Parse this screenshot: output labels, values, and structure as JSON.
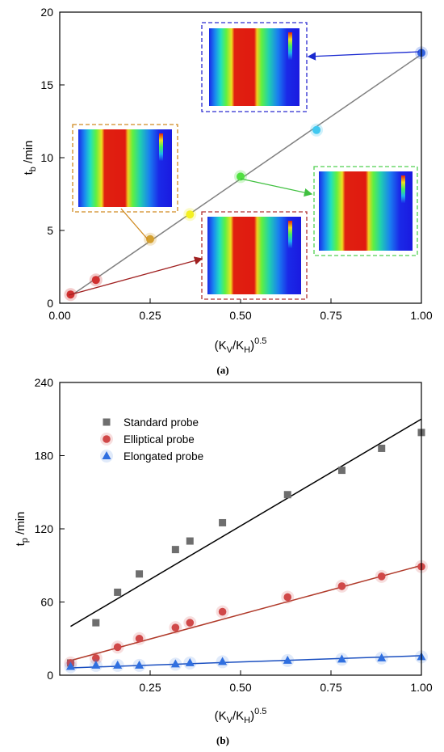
{
  "chart_data": [
    {
      "panel": "(a)",
      "type": "scatter",
      "ylabel": {
        "main": "t",
        "sub": "b",
        "unit": " /min"
      },
      "xlabel": {
        "open": "(K",
        "sub1": "V",
        "mid": "/K",
        "sub2": "H",
        "close": ")",
        "sup": "0.5"
      },
      "xlim": [
        0,
        1.0
      ],
      "ylim": [
        0,
        20
      ],
      "xticks": [
        "0.00",
        "0.25",
        "0.50",
        "0.75",
        "1.00"
      ],
      "yticks": [
        "0",
        "5",
        "10",
        "15",
        "20"
      ],
      "points": [
        {
          "x": 0.03,
          "y": 0.6,
          "color": "#d03030"
        },
        {
          "x": 0.1,
          "y": 1.6,
          "color": "#d03030"
        },
        {
          "x": 0.25,
          "y": 4.4,
          "color": "#d4a030"
        },
        {
          "x": 0.36,
          "y": 6.1,
          "color": "#f4f020"
        },
        {
          "x": 0.5,
          "y": 8.7,
          "color": "#50e040"
        },
        {
          "x": 0.71,
          "y": 11.9,
          "color": "#40c8f0"
        },
        {
          "x": 1.0,
          "y": 17.2,
          "color": "#3060e0"
        }
      ],
      "fit_line": {
        "x": [
          0.03,
          1.0
        ],
        "y": [
          0.5,
          17.1
        ],
        "color": "#808080"
      },
      "grid": false,
      "insets": [
        {
          "name": "inset-blue",
          "border_color": "#2a2ad0",
          "arrow_color": "#1a2ad0",
          "points_to": {
            "x": 1.0,
            "y": 17.2
          }
        },
        {
          "name": "inset-orange",
          "border_color": "#d08a20",
          "arrow_color": "#d08a20",
          "points_to": {
            "x": 0.25,
            "y": 4.4
          }
        },
        {
          "name": "inset-green",
          "border_color": "#50d050",
          "arrow_color": "#40c040",
          "points_to": {
            "x": 0.5,
            "y": 8.7
          }
        },
        {
          "name": "inset-red",
          "border_color": "#b03030",
          "arrow_color": "#a02020",
          "points_to": {
            "x": 0.03,
            "y": 0.6
          }
        }
      ]
    },
    {
      "panel": "(b)",
      "type": "scatter",
      "ylabel": {
        "main": "t",
        "sub": "p",
        "unit": " /min"
      },
      "xlabel": {
        "open": "(K",
        "sub1": "V",
        "mid": "/K",
        "sub2": "H",
        "close": ")",
        "sup": "0.5"
      },
      "xlim": [
        0,
        1.0
      ],
      "ylim": [
        0,
        240
      ],
      "xticks": [
        "0.25",
        "0.50",
        "0.75",
        "1.00"
      ],
      "yticks": [
        "0",
        "60",
        "120",
        "180",
        "240"
      ],
      "grid": false,
      "legend_position": "top-left",
      "x": [
        0.03,
        0.1,
        0.16,
        0.22,
        0.32,
        0.36,
        0.45,
        0.63,
        0.78,
        0.89,
        1.0
      ],
      "series": [
        {
          "name": "Standard probe",
          "marker": "square",
          "color": "#6e6e6e",
          "values": [
            10,
            43,
            68,
            83,
            103,
            110,
            125,
            148,
            168,
            186,
            199
          ],
          "fit_line": {
            "x": [
              0.03,
              1.0
            ],
            "y": [
              40,
              210
            ],
            "color": "#000000"
          }
        },
        {
          "name": "Elliptical probe",
          "marker": "circle",
          "color": "#d04848",
          "values": [
            10,
            14,
            23,
            30,
            39,
            43,
            52,
            64,
            73,
            81,
            89
          ],
          "fit_line": {
            "x": [
              0.03,
              1.0
            ],
            "y": [
              12,
              90
            ],
            "color": "#b03a2a"
          }
        },
        {
          "name": "Elongated probe",
          "marker": "triangle",
          "color": "#2f6fe0",
          "values": [
            7,
            8,
            8,
            8,
            9,
            10,
            11,
            12,
            13,
            14,
            15
          ],
          "fit_line": {
            "x": [
              0.03,
              1.0
            ],
            "y": [
              6,
              16
            ],
            "color": "#1a4fc0"
          }
        }
      ]
    }
  ]
}
